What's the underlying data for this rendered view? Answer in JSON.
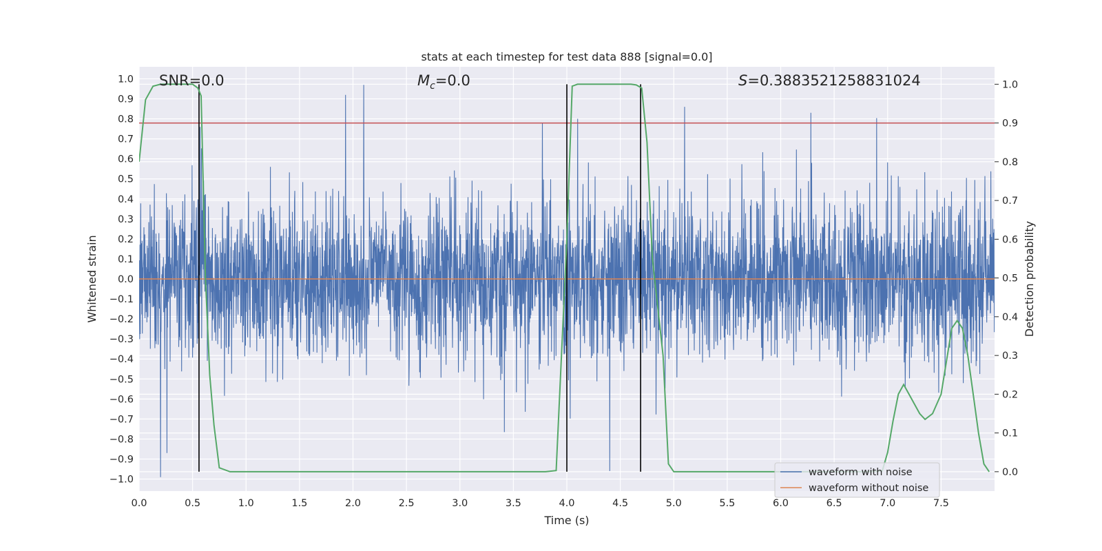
{
  "chart_data": {
    "type": "line",
    "title": "stats at each timestep for test data 888 [signal=0.0]",
    "xlabel": "Time (s)",
    "ylabel_left": "Whitened strain",
    "ylabel_right": "Detection probability",
    "xlim": [
      0.0,
      8.0
    ],
    "ylim_left": [
      -1.06,
      1.06
    ],
    "ylim_right": [
      -0.05,
      1.045
    ],
    "xticks": [
      "0.0",
      "0.5",
      "1.0",
      "1.5",
      "2.0",
      "2.5",
      "3.0",
      "3.5",
      "4.0",
      "4.5",
      "5.0",
      "5.5",
      "6.0",
      "6.5",
      "7.0",
      "7.5"
    ],
    "yticks_left": [
      "1.0",
      "0.9",
      "0.8",
      "0.7",
      "0.6",
      "0.5",
      "0.4",
      "0.3",
      "0.2",
      "0.1",
      "0.0",
      "-0.1",
      "-0.2",
      "-0.3",
      "-0.4",
      "-0.5",
      "-0.6",
      "-0.7",
      "-0.8",
      "-0.9",
      "-1.0"
    ],
    "yticks_right": [
      "1.0",
      "0.9",
      "0.8",
      "0.7",
      "0.6",
      "0.5",
      "0.4",
      "0.3",
      "0.2",
      "0.1",
      "0.0"
    ],
    "annotations": {
      "snr": "SNR=0.0",
      "mc_symbol": "M",
      "mc_sub": "c",
      "mc_value": "=0.0",
      "s_symbol": "S",
      "s_value": "=0.3883521258831024"
    },
    "threshold_line": {
      "axis": "right",
      "y": 0.9,
      "color": "#c44e52"
    },
    "vertical_markers_x": [
      0.56,
      4.0,
      4.69
    ],
    "series": [
      {
        "name": "waveform with noise",
        "axis": "left",
        "color": "#4c72b0",
        "note": "noise amplitude envelope approx +/-0.3 typical, peaks near +/-1.0",
        "peaks": [
          {
            "x": 0.2,
            "y": -0.99
          },
          {
            "x": 0.26,
            "y": -0.87
          },
          {
            "x": 0.57,
            "y": 0.76
          },
          {
            "x": 1.93,
            "y": 0.92
          },
          {
            "x": 2.1,
            "y": 0.97
          },
          {
            "x": 3.77,
            "y": 0.78
          },
          {
            "x": 4.1,
            "y": 0.8
          },
          {
            "x": 4.4,
            "y": -0.96
          },
          {
            "x": 5.1,
            "y": 0.86
          },
          {
            "x": 6.28,
            "y": 0.83
          }
        ]
      },
      {
        "name": "waveform without noise",
        "axis": "left",
        "color": "#dd8452",
        "x": [
          0.0,
          8.0
        ],
        "y": [
          0.0,
          0.0
        ]
      },
      {
        "name": "",
        "axis": "right",
        "color": "#55a868",
        "x": [
          0.0,
          0.06,
          0.13,
          0.2,
          0.3,
          0.4,
          0.5,
          0.55,
          0.58,
          0.62,
          0.66,
          0.7,
          0.75,
          0.85,
          1.0,
          2.0,
          3.0,
          3.8,
          3.9,
          3.95,
          4.0,
          4.05,
          4.1,
          4.5,
          4.6,
          4.65,
          4.7,
          4.75,
          4.8,
          4.9,
          4.95,
          5.0,
          6.0,
          6.8,
          6.95,
          7.0,
          7.05,
          7.1,
          7.15,
          7.2,
          7.3,
          7.35,
          7.42,
          7.5,
          7.6,
          7.65,
          7.7,
          7.75,
          7.8,
          7.85,
          7.9,
          7.95
        ],
        "y": [
          0.8,
          0.96,
          0.995,
          1.0,
          1.0,
          1.0,
          1.0,
          0.99,
          0.97,
          0.5,
          0.25,
          0.12,
          0.01,
          0.0,
          0.0,
          0.0,
          0.0,
          0.0,
          0.003,
          0.3,
          0.6,
          0.995,
          1.0,
          1.0,
          1.0,
          0.998,
          0.99,
          0.85,
          0.55,
          0.3,
          0.02,
          0.0,
          0.0,
          0.0,
          0.002,
          0.05,
          0.13,
          0.2,
          0.225,
          0.2,
          0.15,
          0.135,
          0.15,
          0.2,
          0.37,
          0.39,
          0.37,
          0.3,
          0.2,
          0.1,
          0.02,
          0.0
        ]
      }
    ],
    "legend": {
      "position": "lower right",
      "entries": [
        {
          "label": "waveform with noise",
          "color": "#4c72b0"
        },
        {
          "label": "waveform without noise",
          "color": "#dd8452"
        }
      ]
    },
    "style": {
      "axes_bg": "#eaeaf2",
      "grid": "#ffffff",
      "text": "#262626"
    }
  }
}
